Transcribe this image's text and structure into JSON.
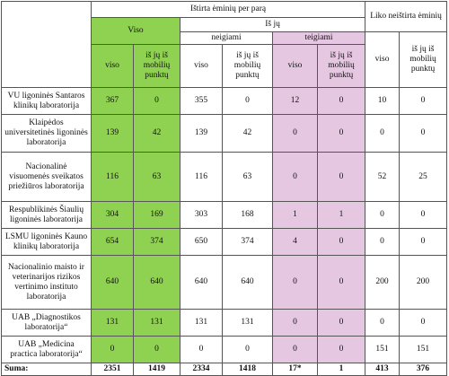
{
  "headers": {
    "tested": "Ištirta ėminių per parą",
    "untested": "Liko neištirta ėminių",
    "total": "Viso",
    "of_them": "Iš jų",
    "negative": "neigiami",
    "positive": "teigiami",
    "viso": "viso",
    "from_mobile": "iš jų iš mobilių punktų"
  },
  "rows": [
    {
      "name": "VU ligoninės Santaros klinikų laboratorija",
      "v": [
        "367",
        "0",
        "355",
        "0",
        "12",
        "0",
        "10",
        "0"
      ]
    },
    {
      "name": "Klaipėdos universitetinės ligoninės laboratorija",
      "v": [
        "139",
        "42",
        "139",
        "42",
        "0",
        "0",
        "0",
        "0"
      ]
    },
    {
      "name": "Nacionalinė visuomenės sveikatos priežiūros laboratorija",
      "v": [
        "116",
        "63",
        "116",
        "63",
        "0",
        "0",
        "52",
        "25"
      ]
    },
    {
      "name": "Respublikinės Šiaulių ligoninės laboratorija",
      "v": [
        "304",
        "169",
        "303",
        "168",
        "1",
        "1",
        "0",
        "0"
      ]
    },
    {
      "name": "LSMU ligoninės Kauno klinikų laboratorija",
      "v": [
        "654",
        "374",
        "650",
        "374",
        "4",
        "0",
        "0",
        "0"
      ]
    },
    {
      "name": "Nacionalinio maisto ir veterinarijos rizikos vertinimo instituto laboratorija",
      "v": [
        "640",
        "640",
        "640",
        "640",
        "0",
        "0",
        "200",
        "200"
      ]
    },
    {
      "name": "UAB „Diagnostikos laboratorija“",
      "v": [
        "131",
        "131",
        "131",
        "131",
        "0",
        "0",
        "0",
        "0"
      ]
    },
    {
      "name": "UAB „Medicina practica laboratorija“",
      "v": [
        "0",
        "0",
        "0",
        "0",
        "0",
        "0",
        "151",
        "151"
      ]
    }
  ],
  "sum": {
    "name": "Suma:",
    "v": [
      "2351",
      "1419",
      "2334",
      "1418",
      "17*",
      "1",
      "413",
      "376"
    ]
  },
  "colors": {
    "green": "#8fd150",
    "pink": "#e6c7e2",
    "border": "#555555"
  }
}
